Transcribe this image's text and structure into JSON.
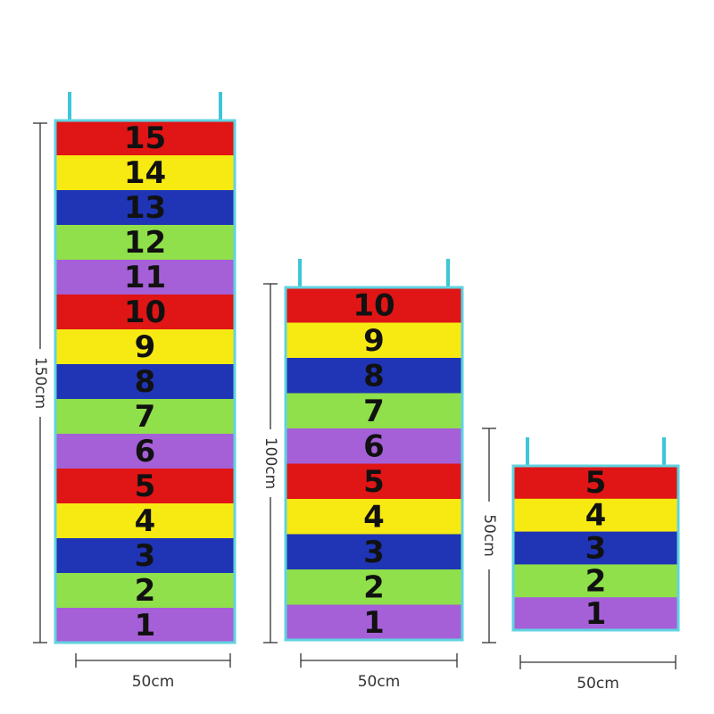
{
  "boards": [
    {
      "height_label": "150cm",
      "width_label": "50cm",
      "stripes": [
        "15",
        "14",
        "13",
        "12",
        "11",
        "10",
        "9",
        "8",
        "7",
        "6",
        "5",
        "4",
        "3",
        "2",
        "1"
      ]
    },
    {
      "height_label": "100cm",
      "width_label": "50cm",
      "stripes": [
        "10",
        "9",
        "8",
        "7",
        "6",
        "5",
        "4",
        "3",
        "2",
        "1"
      ]
    },
    {
      "height_label": "50cm",
      "width_label": "50cm",
      "stripes": [
        "5",
        "4",
        "3",
        "2",
        "1"
      ]
    }
  ]
}
